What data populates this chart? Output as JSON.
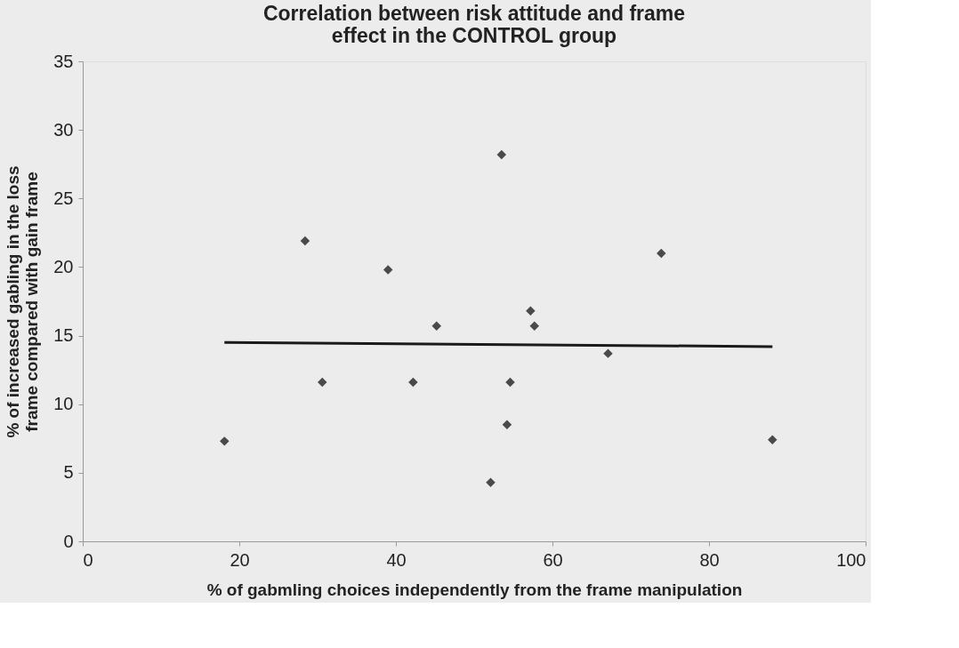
{
  "chart_data": {
    "type": "scatter",
    "title": [
      "Correlation between risk attitude and frame",
      "effect in the CONTROL group"
    ],
    "xlabel": "% of gabmling choices independently from the frame manipulation",
    "ylabel": [
      "% of increased gabling in the loss",
      "frame compared with gain frame"
    ],
    "xlim": [
      0,
      100
    ],
    "xticks": [
      0,
      20,
      40,
      60,
      80,
      100
    ],
    "ylim": [
      0,
      35
    ],
    "yticks": [
      0,
      5,
      10,
      15,
      20,
      25,
      30,
      35
    ],
    "grid": false,
    "marker": "diamond",
    "series": [
      {
        "color": "#4a4a4a",
        "x": [
          18.1,
          28.4,
          30.6,
          39.0,
          42.2,
          45.2,
          53.5,
          52.1,
          54.2,
          54.6,
          57.2,
          57.7,
          67.1,
          73.9,
          88.1
        ],
        "values": [
          7.3,
          21.9,
          11.6,
          19.8,
          11.6,
          15.7,
          28.2,
          4.3,
          8.5,
          11.6,
          16.8,
          15.7,
          13.7,
          21.0,
          7.4
        ]
      },
      {
        "type": "line",
        "color": "#1a1a1a",
        "x": [
          18.1,
          88.1
        ],
        "values": [
          14.5,
          14.2
        ],
        "line_style": "solid",
        "marker": "none"
      }
    ]
  }
}
